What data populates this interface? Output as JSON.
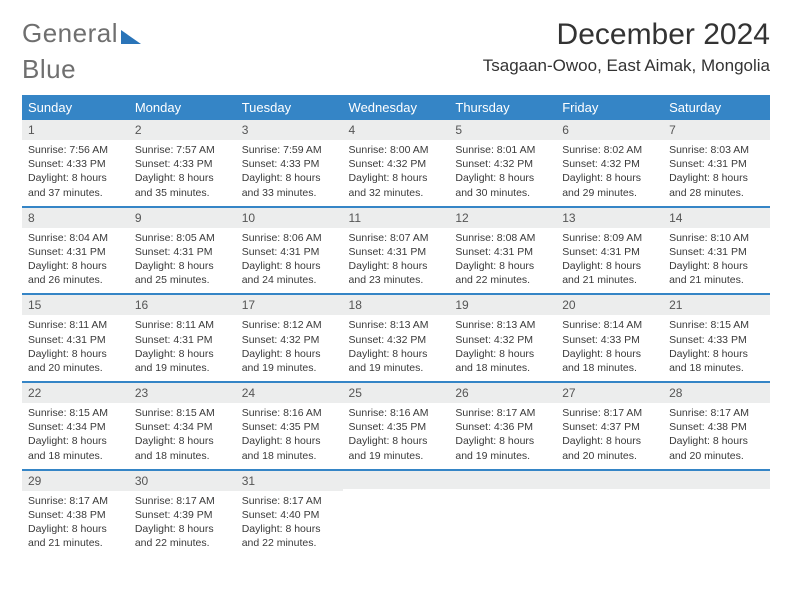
{
  "brand": {
    "part1": "General",
    "part2": "Blue"
  },
  "title": "December 2024",
  "location": "Tsagaan-Owoo, East Aimak, Mongolia",
  "colors": {
    "accent": "#3585c6",
    "daynum_bg": "#eceded",
    "text": "#333333"
  },
  "day_headers": [
    "Sunday",
    "Monday",
    "Tuesday",
    "Wednesday",
    "Thursday",
    "Friday",
    "Saturday"
  ],
  "weeks": [
    [
      {
        "n": "1",
        "sr": "Sunrise: 7:56 AM",
        "ss": "Sunset: 4:33 PM",
        "dl": "Daylight: 8 hours and 37 minutes."
      },
      {
        "n": "2",
        "sr": "Sunrise: 7:57 AM",
        "ss": "Sunset: 4:33 PM",
        "dl": "Daylight: 8 hours and 35 minutes."
      },
      {
        "n": "3",
        "sr": "Sunrise: 7:59 AM",
        "ss": "Sunset: 4:33 PM",
        "dl": "Daylight: 8 hours and 33 minutes."
      },
      {
        "n": "4",
        "sr": "Sunrise: 8:00 AM",
        "ss": "Sunset: 4:32 PM",
        "dl": "Daylight: 8 hours and 32 minutes."
      },
      {
        "n": "5",
        "sr": "Sunrise: 8:01 AM",
        "ss": "Sunset: 4:32 PM",
        "dl": "Daylight: 8 hours and 30 minutes."
      },
      {
        "n": "6",
        "sr": "Sunrise: 8:02 AM",
        "ss": "Sunset: 4:32 PM",
        "dl": "Daylight: 8 hours and 29 minutes."
      },
      {
        "n": "7",
        "sr": "Sunrise: 8:03 AM",
        "ss": "Sunset: 4:31 PM",
        "dl": "Daylight: 8 hours and 28 minutes."
      }
    ],
    [
      {
        "n": "8",
        "sr": "Sunrise: 8:04 AM",
        "ss": "Sunset: 4:31 PM",
        "dl": "Daylight: 8 hours and 26 minutes."
      },
      {
        "n": "9",
        "sr": "Sunrise: 8:05 AM",
        "ss": "Sunset: 4:31 PM",
        "dl": "Daylight: 8 hours and 25 minutes."
      },
      {
        "n": "10",
        "sr": "Sunrise: 8:06 AM",
        "ss": "Sunset: 4:31 PM",
        "dl": "Daylight: 8 hours and 24 minutes."
      },
      {
        "n": "11",
        "sr": "Sunrise: 8:07 AM",
        "ss": "Sunset: 4:31 PM",
        "dl": "Daylight: 8 hours and 23 minutes."
      },
      {
        "n": "12",
        "sr": "Sunrise: 8:08 AM",
        "ss": "Sunset: 4:31 PM",
        "dl": "Daylight: 8 hours and 22 minutes."
      },
      {
        "n": "13",
        "sr": "Sunrise: 8:09 AM",
        "ss": "Sunset: 4:31 PM",
        "dl": "Daylight: 8 hours and 21 minutes."
      },
      {
        "n": "14",
        "sr": "Sunrise: 8:10 AM",
        "ss": "Sunset: 4:31 PM",
        "dl": "Daylight: 8 hours and 21 minutes."
      }
    ],
    [
      {
        "n": "15",
        "sr": "Sunrise: 8:11 AM",
        "ss": "Sunset: 4:31 PM",
        "dl": "Daylight: 8 hours and 20 minutes."
      },
      {
        "n": "16",
        "sr": "Sunrise: 8:11 AM",
        "ss": "Sunset: 4:31 PM",
        "dl": "Daylight: 8 hours and 19 minutes."
      },
      {
        "n": "17",
        "sr": "Sunrise: 8:12 AM",
        "ss": "Sunset: 4:32 PM",
        "dl": "Daylight: 8 hours and 19 minutes."
      },
      {
        "n": "18",
        "sr": "Sunrise: 8:13 AM",
        "ss": "Sunset: 4:32 PM",
        "dl": "Daylight: 8 hours and 19 minutes."
      },
      {
        "n": "19",
        "sr": "Sunrise: 8:13 AM",
        "ss": "Sunset: 4:32 PM",
        "dl": "Daylight: 8 hours and 18 minutes."
      },
      {
        "n": "20",
        "sr": "Sunrise: 8:14 AM",
        "ss": "Sunset: 4:33 PM",
        "dl": "Daylight: 8 hours and 18 minutes."
      },
      {
        "n": "21",
        "sr": "Sunrise: 8:15 AM",
        "ss": "Sunset: 4:33 PM",
        "dl": "Daylight: 8 hours and 18 minutes."
      }
    ],
    [
      {
        "n": "22",
        "sr": "Sunrise: 8:15 AM",
        "ss": "Sunset: 4:34 PM",
        "dl": "Daylight: 8 hours and 18 minutes."
      },
      {
        "n": "23",
        "sr": "Sunrise: 8:15 AM",
        "ss": "Sunset: 4:34 PM",
        "dl": "Daylight: 8 hours and 18 minutes."
      },
      {
        "n": "24",
        "sr": "Sunrise: 8:16 AM",
        "ss": "Sunset: 4:35 PM",
        "dl": "Daylight: 8 hours and 18 minutes."
      },
      {
        "n": "25",
        "sr": "Sunrise: 8:16 AM",
        "ss": "Sunset: 4:35 PM",
        "dl": "Daylight: 8 hours and 19 minutes."
      },
      {
        "n": "26",
        "sr": "Sunrise: 8:17 AM",
        "ss": "Sunset: 4:36 PM",
        "dl": "Daylight: 8 hours and 19 minutes."
      },
      {
        "n": "27",
        "sr": "Sunrise: 8:17 AM",
        "ss": "Sunset: 4:37 PM",
        "dl": "Daylight: 8 hours and 20 minutes."
      },
      {
        "n": "28",
        "sr": "Sunrise: 8:17 AM",
        "ss": "Sunset: 4:38 PM",
        "dl": "Daylight: 8 hours and 20 minutes."
      }
    ],
    [
      {
        "n": "29",
        "sr": "Sunrise: 8:17 AM",
        "ss": "Sunset: 4:38 PM",
        "dl": "Daylight: 8 hours and 21 minutes."
      },
      {
        "n": "30",
        "sr": "Sunrise: 8:17 AM",
        "ss": "Sunset: 4:39 PM",
        "dl": "Daylight: 8 hours and 22 minutes."
      },
      {
        "n": "31",
        "sr": "Sunrise: 8:17 AM",
        "ss": "Sunset: 4:40 PM",
        "dl": "Daylight: 8 hours and 22 minutes."
      },
      {
        "n": "",
        "sr": "",
        "ss": "",
        "dl": ""
      },
      {
        "n": "",
        "sr": "",
        "ss": "",
        "dl": ""
      },
      {
        "n": "",
        "sr": "",
        "ss": "",
        "dl": ""
      },
      {
        "n": "",
        "sr": "",
        "ss": "",
        "dl": ""
      }
    ]
  ]
}
